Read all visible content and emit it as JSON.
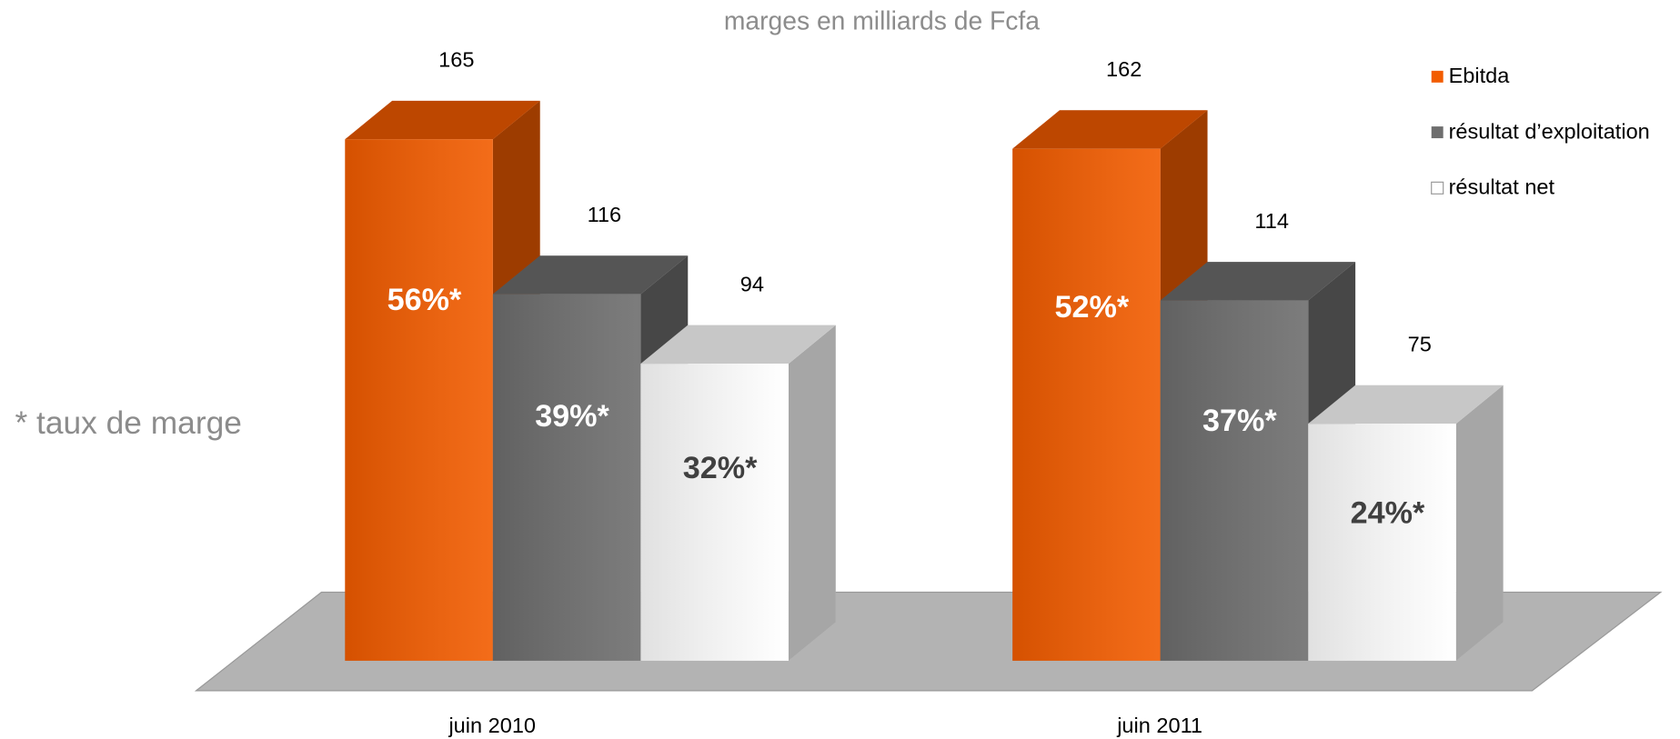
{
  "chart_data": {
    "type": "bar3d",
    "title": "marges en milliards de Fcfa",
    "note": "* taux de marge",
    "categories": [
      "juin 2010",
      "juin 2011"
    ],
    "series": [
      {
        "name": "Ebitda",
        "color": "#f25c00",
        "values": [
          165,
          162
        ],
        "margin_labels": [
          "56%*",
          "52%*"
        ],
        "margin_label_color": "#ffffff"
      },
      {
        "name": "résultat d’exploitation",
        "color": "#6e6e6e",
        "values": [
          116,
          114
        ],
        "margin_labels": [
          "39%*",
          "37%*"
        ],
        "margin_label_color": "#ffffff"
      },
      {
        "name": "résultat net",
        "color": "#ffffff",
        "values": [
          94,
          75
        ],
        "margin_labels": [
          "32%*",
          "24%*"
        ],
        "margin_label_color": "#404040"
      }
    ],
    "legend": "top-right"
  }
}
